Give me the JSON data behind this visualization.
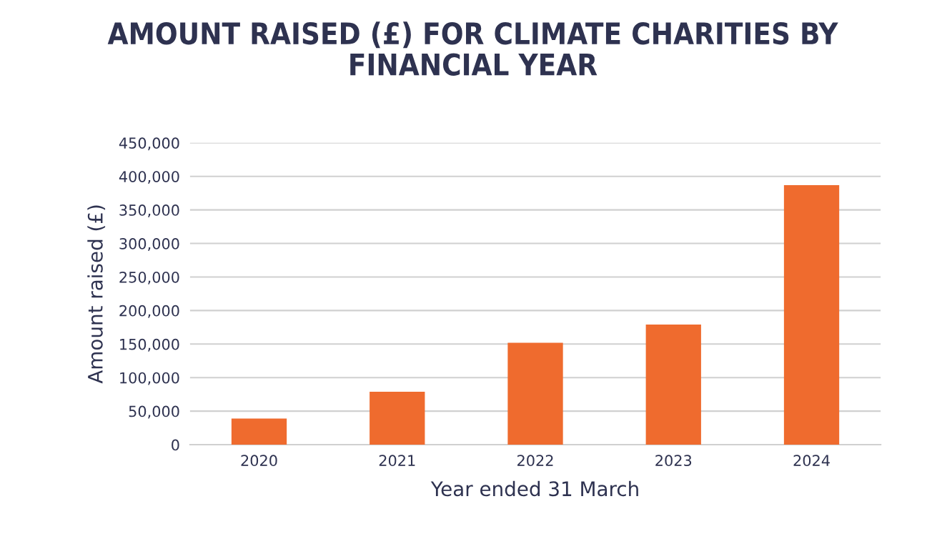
{
  "chart_data": {
    "type": "bar",
    "title": "AMOUNT RAISED (£) FOR CLIMATE CHARITIES BY\nFINANCIAL YEAR",
    "xlabel": "Year ended 31 March",
    "ylabel": "Amount raised (£)",
    "categories": [
      "2020",
      "2021",
      "2022",
      "2023",
      "2024"
    ],
    "values": [
      39000,
      79000,
      152000,
      179000,
      387000
    ],
    "color": "#ef6b2e",
    "ylim": [
      0,
      450000
    ],
    "yticks": [
      {
        "value": 0,
        "label": "0"
      },
      {
        "value": 50000,
        "label": "50,000"
      },
      {
        "value": 100000,
        "label": "100,000"
      },
      {
        "value": 150000,
        "label": "150,000"
      },
      {
        "value": 200000,
        "label": "200,000"
      },
      {
        "value": 250000,
        "label": "250,000"
      },
      {
        "value": 300000,
        "label": "300,000"
      },
      {
        "value": 350000,
        "label": "350,000"
      },
      {
        "value": 400000,
        "label": "400,000"
      },
      {
        "value": 450000,
        "label": "450,000"
      }
    ],
    "grid": "y"
  }
}
